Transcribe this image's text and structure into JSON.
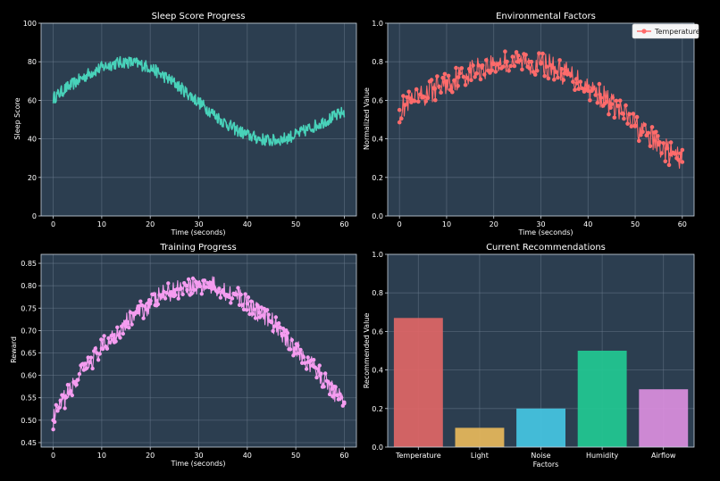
{
  "chart_data": [
    {
      "id": "sleep",
      "type": "line",
      "title": "Sleep Score Progress",
      "xlabel": "Time (seconds)",
      "ylabel": "Sleep Score",
      "xlim": [
        -2.5,
        62.5
      ],
      "ylim": [
        0,
        100
      ],
      "xticks": [
        0,
        10,
        20,
        30,
        40,
        50,
        60
      ],
      "yticks": [
        0,
        20,
        40,
        60,
        80,
        100
      ],
      "grid": true,
      "series": [
        {
          "name": "Sleep Score",
          "color": "#48d1b9",
          "x": [
            0,
            2.5,
            5,
            7.5,
            10,
            12.5,
            15,
            17.5,
            20,
            22.5,
            25,
            27.5,
            30,
            32.5,
            35,
            37.5,
            40,
            42.5,
            45,
            47.5,
            50,
            52.5,
            55,
            57.5,
            60
          ],
          "y": [
            61,
            66,
            70,
            74,
            77,
            79,
            80,
            79,
            77,
            73,
            69,
            64,
            59,
            54,
            49,
            45,
            42,
            40,
            39,
            40,
            42,
            45,
            48,
            51,
            54
          ]
        }
      ]
    },
    {
      "id": "env",
      "type": "line",
      "title": "Environmental Factors",
      "xlabel": "Time (seconds)",
      "ylabel": "Normalized Value",
      "xlim": [
        -2.5,
        62.5
      ],
      "ylim": [
        0,
        1.0
      ],
      "xticks": [
        0,
        10,
        20,
        30,
        40,
        50,
        60
      ],
      "yticks": [
        0.0,
        0.2,
        0.4,
        0.6,
        0.8,
        1.0
      ],
      "ytick_labels": [
        "0.0",
        "0.2",
        "0.4",
        "0.6",
        "0.8",
        "1.0"
      ],
      "grid": true,
      "legend": "top-right",
      "series": [
        {
          "name": "Temperature",
          "color": "#ff6b6b",
          "x": [
            0,
            2.5,
            5,
            7.5,
            10,
            12.5,
            15,
            17.5,
            20,
            22.5,
            25,
            27.5,
            30,
            32.5,
            35,
            37.5,
            40,
            42.5,
            45,
            47.5,
            50,
            52.5,
            55,
            57.5,
            60
          ],
          "y": [
            0.55,
            0.59,
            0.62,
            0.66,
            0.69,
            0.72,
            0.75,
            0.77,
            0.79,
            0.8,
            0.8,
            0.8,
            0.79,
            0.77,
            0.74,
            0.71,
            0.67,
            0.63,
            0.58,
            0.53,
            0.47,
            0.42,
            0.37,
            0.32,
            0.28
          ]
        }
      ]
    },
    {
      "id": "train",
      "type": "line",
      "title": "Training Progress",
      "xlabel": "Time (seconds)",
      "ylabel": "Reward",
      "xlim": [
        -2.5,
        62.5
      ],
      "ylim": [
        0.44,
        0.87
      ],
      "xticks": [
        0,
        10,
        20,
        30,
        40,
        50,
        60
      ],
      "yticks": [
        0.45,
        0.5,
        0.55,
        0.6,
        0.65,
        0.7,
        0.75,
        0.8,
        0.85
      ],
      "ytick_labels": [
        "0.45",
        "0.50",
        "0.55",
        "0.60",
        "0.65",
        "0.70",
        "0.75",
        "0.80",
        "0.85"
      ],
      "grid": true,
      "series": [
        {
          "name": "Reward",
          "color": "#f59cf0",
          "x": [
            0,
            2.5,
            5,
            7.5,
            10,
            12.5,
            15,
            17.5,
            20,
            22.5,
            25,
            27.5,
            30,
            32.5,
            35,
            37.5,
            40,
            42.5,
            45,
            47.5,
            50,
            52.5,
            55,
            57.5,
            60
          ],
          "y": [
            0.5,
            0.55,
            0.59,
            0.63,
            0.66,
            0.69,
            0.72,
            0.74,
            0.76,
            0.78,
            0.79,
            0.8,
            0.8,
            0.8,
            0.79,
            0.78,
            0.76,
            0.74,
            0.72,
            0.69,
            0.66,
            0.63,
            0.6,
            0.57,
            0.54
          ]
        }
      ]
    },
    {
      "id": "rec",
      "type": "bar",
      "title": "Current Recommendations",
      "xlabel": "Factors",
      "ylabel": "Recommended Value",
      "ylim": [
        0,
        1.0
      ],
      "yticks": [
        0.0,
        0.2,
        0.4,
        0.6,
        0.8,
        1.0
      ],
      "ytick_labels": [
        "0.0",
        "0.2",
        "0.4",
        "0.6",
        "0.8",
        "1.0"
      ],
      "grid": true,
      "categories": [
        "Temperature",
        "Light",
        "Noise",
        "Humidity",
        "Airflow"
      ],
      "values": [
        0.67,
        0.1,
        0.2,
        0.5,
        0.3
      ],
      "colors": [
        "#e06666",
        "#e8b95b",
        "#45c6e3",
        "#22c993",
        "#db8ede"
      ]
    }
  ],
  "theme": {
    "figure_bg": "#000000",
    "axes_bg": "#2c3e50"
  }
}
